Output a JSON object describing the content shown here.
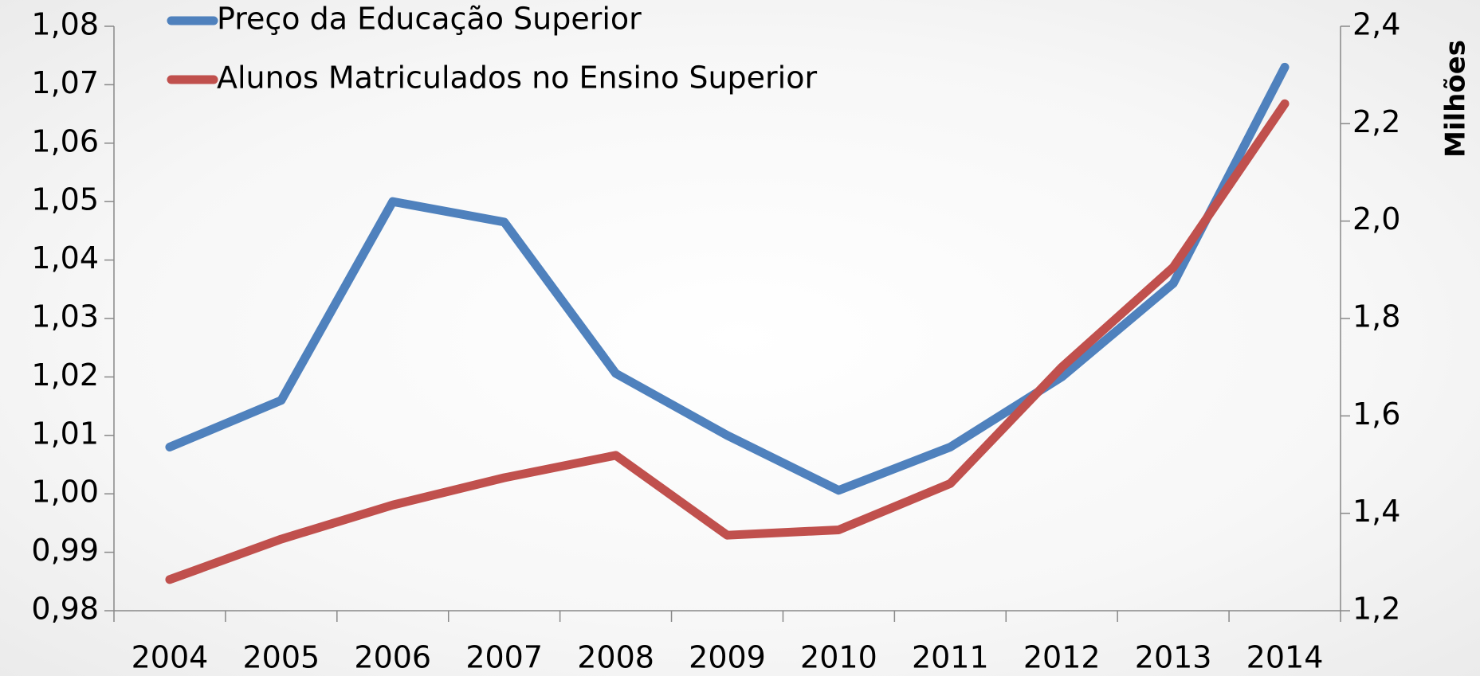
{
  "chart_data": {
    "type": "line",
    "categories": [
      "2004",
      "2005",
      "2006",
      "2007",
      "2008",
      "2009",
      "2010",
      "2011",
      "2012",
      "2013",
      "2014"
    ],
    "series": [
      {
        "name": "Preço da Educação Superior",
        "color": "#4f81bd",
        "values": [
          1.008,
          1.016,
          1.05,
          1.0465,
          1.0206,
          1.01,
          1.0006,
          1.008,
          1.02,
          1.036,
          1.073
        ]
      },
      {
        "name": "Alunos Matriculados no Ensino Superior",
        "color": "#c0504d",
        "axis": "y2",
        "values": [
          1.264,
          1.347,
          1.417,
          1.473,
          1.519,
          1.355,
          1.366,
          1.461,
          1.7,
          1.905,
          2.241
        ]
      }
    ],
    "ylim": [
      0.98,
      1.08
    ],
    "yticks": [
      {
        "value": 0.98,
        "label": "0,98"
      },
      {
        "value": 0.99,
        "label": "0,99"
      },
      {
        "value": 1.0,
        "label": "1,00"
      },
      {
        "value": 1.01,
        "label": "1,01"
      },
      {
        "value": 1.02,
        "label": "1,02"
      },
      {
        "value": 1.03,
        "label": "1,03"
      },
      {
        "value": 1.04,
        "label": "1,04"
      },
      {
        "value": 1.05,
        "label": "1,05"
      },
      {
        "value": 1.06,
        "label": "1,06"
      },
      {
        "value": 1.07,
        "label": "1,07"
      },
      {
        "value": 1.08,
        "label": "1,08"
      }
    ],
    "y2lim": [
      1.2,
      2.4
    ],
    "y2ticks": [
      {
        "value": 1.2,
        "label": "1,2"
      },
      {
        "value": 1.4,
        "label": "1,4"
      },
      {
        "value": 1.6,
        "label": "1,6"
      },
      {
        "value": 1.8,
        "label": "1,8"
      },
      {
        "value": 2.0,
        "label": "2,0"
      },
      {
        "value": 2.2,
        "label": "2,2"
      },
      {
        "value": 2.4,
        "label": "2,4"
      }
    ],
    "y2label": "Milhões",
    "legend": "top-left"
  }
}
